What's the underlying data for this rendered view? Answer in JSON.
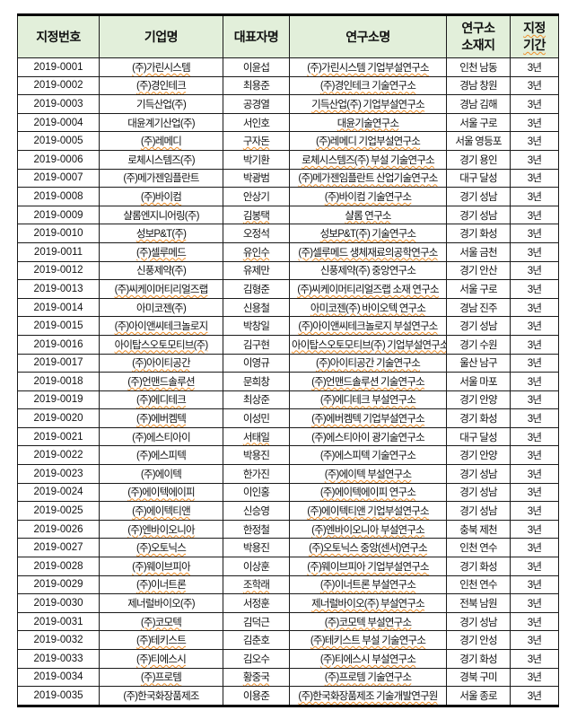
{
  "page": {
    "background": "#ffffff"
  },
  "table": {
    "header_fill": "#e2efda",
    "border_color": "#000000",
    "spellcheck_underline_color": "#ef8f2a",
    "headers": [
      {
        "key": "id",
        "label": "지정번호",
        "wavy": false
      },
      {
        "key": "company",
        "label": "기업명",
        "wavy": false
      },
      {
        "key": "ceo",
        "label": "대표자명",
        "wavy": false
      },
      {
        "key": "lab",
        "label": "연구소명",
        "wavy": false
      },
      {
        "key": "location",
        "label": "연구소\n소재지",
        "wavy": false
      },
      {
        "key": "period",
        "label": "지정\n기간",
        "wavy": true
      }
    ],
    "rows": [
      {
        "id": "2019-0001",
        "company": "(주)가린시스템",
        "ceo": "이윤섭",
        "lab": "(주)가린시스템 기업부설연구소",
        "location": "인천 남동",
        "period": "3년",
        "wavy": [
          "company",
          "lab"
        ]
      },
      {
        "id": "2019-0002",
        "company": "(주)경인테크",
        "ceo": "최용준",
        "lab": "(주)경인테크 기술연구소",
        "location": "경남 창원",
        "period": "3년",
        "wavy": [
          "company",
          "lab"
        ]
      },
      {
        "id": "2019-0003",
        "company": "기득산업(주)",
        "ceo": "공경열",
        "lab": "기득산업(주) 기업부설연구소",
        "location": "경남 김해",
        "period": "3년",
        "wavy": [
          "lab"
        ]
      },
      {
        "id": "2019-0004",
        "company": "대윤계기산업(주)",
        "ceo": "서인호",
        "lab": "대윤기술연구소",
        "location": "서울 구로",
        "period": "3년",
        "wavy": [
          "lab"
        ]
      },
      {
        "id": "2019-0005",
        "company": "(주)레메디",
        "ceo": "구자돈",
        "lab": "(주)레메디 기업부설연구소",
        "location": "서울 영등포",
        "period": "3년",
        "wavy": [
          "company",
          "ceo",
          "lab"
        ]
      },
      {
        "id": "2019-0006",
        "company": "로체시스템즈(주)",
        "ceo": "박기환",
        "lab": "로체시스템즈(주) 부설 기술연구소",
        "location": "경기 용인",
        "period": "3년",
        "wavy": [
          "lab"
        ]
      },
      {
        "id": "2019-0007",
        "company": "(주)메가젠임플란트",
        "ceo": "박광범",
        "lab": "(주)메가젠임플란트 산업기술연구소",
        "location": "대구 달성",
        "period": "3년",
        "wavy": [
          "lab"
        ]
      },
      {
        "id": "2019-0008",
        "company": "(주)바이컴",
        "ceo": "안상기",
        "lab": "(주)바이컴 기술연구소",
        "location": "경기 성남",
        "period": "3년",
        "wavy": [
          "company",
          "lab"
        ]
      },
      {
        "id": "2019-0009",
        "company": "샬롬엔지니어링(주)",
        "ceo": "김봉택",
        "lab": "샬롬 연구소",
        "location": "경기 성남",
        "period": "3년",
        "wavy": [
          "ceo",
          "lab"
        ]
      },
      {
        "id": "2019-0010",
        "company": "성보P&T(주)",
        "ceo": "오정석",
        "lab": "성보P&T(주) 기술연구소",
        "location": "경기 화성",
        "period": "3년",
        "wavy": [
          "company",
          "lab"
        ]
      },
      {
        "id": "2019-0011",
        "company": "(주)셀루메드",
        "ceo": "유인수",
        "lab": "(주)셀루메드 생체재료의공학연구소",
        "location": "서울 금천",
        "period": "3년",
        "wavy": [
          "company",
          "ceo",
          "lab"
        ]
      },
      {
        "id": "2019-0012",
        "company": "신풍제약(주)",
        "ceo": "유제만",
        "lab": "신풍제약(주) 중앙연구소",
        "location": "경기 안산",
        "period": "3년",
        "wavy": []
      },
      {
        "id": "2019-0013",
        "company": "(주)씨케이머티리얼즈랩",
        "ceo": "김형준",
        "lab": "(주)씨케이머티리얼즈랩 소재 연구소",
        "location": "서울 구로",
        "period": "3년",
        "wavy": [
          "company",
          "lab"
        ]
      },
      {
        "id": "2019-0014",
        "company": "아미코젠(주)",
        "ceo": "신용철",
        "lab": "아미코젠(주) 바이오텍 연구소",
        "location": "경남 진주",
        "period": "3년",
        "wavy": [
          "lab"
        ]
      },
      {
        "id": "2019-0015",
        "company": "(주)아이앤씨테크놀로지",
        "ceo": "박창일",
        "lab": "(주)아이앤씨테크놀로지 부설연구소",
        "location": "경기 성남",
        "period": "3년",
        "wavy": [
          "company",
          "lab"
        ]
      },
      {
        "id": "2019-0016",
        "company": "아이탑스오토모티브(주)",
        "ceo": "김구현",
        "lab": "아이탑스오토모티브(주) 기업부설연구소",
        "location": "경기 수원",
        "period": "3년",
        "wavy": [
          "company",
          "lab"
        ]
      },
      {
        "id": "2019-0017",
        "company": "(주)아이티공간",
        "ceo": "이영규",
        "lab": "(주)아이티공간 기술연구소",
        "location": "울산 남구",
        "period": "3년",
        "wavy": [
          "company",
          "lab"
        ]
      },
      {
        "id": "2019-0018",
        "company": "(주)언맨드솔루션",
        "ceo": "문희창",
        "lab": "(주)언맨드솔루션 기술연구소",
        "location": "서울 마포",
        "period": "3년",
        "wavy": [
          "company",
          "lab"
        ]
      },
      {
        "id": "2019-0019",
        "company": "(주)에디테크",
        "ceo": "최상준",
        "lab": "(주)에디테크 부설연구소",
        "location": "경기 안양",
        "period": "3년",
        "wavy": [
          "company",
          "lab"
        ]
      },
      {
        "id": "2019-0020",
        "company": "(주)에버켐텍",
        "ceo": "이성민",
        "lab": "(주)에버켐텍 기업부설연구소",
        "location": "경기 화성",
        "period": "3년",
        "wavy": [
          "company",
          "lab"
        ]
      },
      {
        "id": "2019-0021",
        "company": "(주)에스티아이",
        "ceo": "서태일",
        "lab": "(주)에스티아이 광기술연구소",
        "location": "대구 달성",
        "period": "3년",
        "wavy": [
          "ceo"
        ]
      },
      {
        "id": "2019-0022",
        "company": "(주)에스피텍",
        "ceo": "박용진",
        "lab": "(주)에스피텍 기술연구소",
        "location": "경기 안양",
        "period": "3년",
        "wavy": []
      },
      {
        "id": "2019-0023",
        "company": "(주)에이텍",
        "ceo": "한가진",
        "lab": "(주)에이텍 부설연구소",
        "location": "경기 성남",
        "period": "3년",
        "wavy": [
          "lab"
        ]
      },
      {
        "id": "2019-0024",
        "company": "(주)에이텍에이피",
        "ceo": "이인홍",
        "lab": "(주)에이텍에이피 연구소",
        "location": "경기 성남",
        "period": "3년",
        "wavy": [
          "company",
          "lab"
        ]
      },
      {
        "id": "2019-0025",
        "company": "(주)에이텍티앤",
        "ceo": "신승영",
        "lab": "(주)에이텍티앤 기업부설연구소",
        "location": "경기 성남",
        "period": "3년",
        "wavy": [
          "company",
          "lab"
        ]
      },
      {
        "id": "2019-0026",
        "company": "(주)엔바이오니아",
        "ceo": "한정철",
        "lab": "(주)엔바이오니아 부설연구소",
        "location": "충북 제천",
        "period": "3년",
        "wavy": [
          "company",
          "lab"
        ]
      },
      {
        "id": "2019-0027",
        "company": "(주)오토닉스",
        "ceo": "박용진",
        "lab": "(주)오토닉스 중앙(센서)연구소",
        "location": "인천 연수",
        "period": "3년",
        "wavy": [
          "company",
          "lab"
        ]
      },
      {
        "id": "2019-0028",
        "company": "(주)웨이브피아",
        "ceo": "이상훈",
        "lab": "(주)웨이브피아 기업부설연구소",
        "location": "경기 화성",
        "period": "3년",
        "wavy": [
          "company",
          "lab"
        ]
      },
      {
        "id": "2019-0029",
        "company": "(주)이너트론",
        "ceo": "조학래",
        "lab": "(주)이너트론 부설연구소",
        "location": "인천 연수",
        "period": "3년",
        "wavy": [
          "company",
          "ceo",
          "lab"
        ]
      },
      {
        "id": "2019-0030",
        "company": "제너럴바이오(주)",
        "ceo": "서정훈",
        "lab": "제너럴바이오(주) 부설연구소",
        "location": "전북 남원",
        "period": "3년",
        "wavy": [
          "lab"
        ]
      },
      {
        "id": "2019-0031",
        "company": "(주)코모텍",
        "ceo": "김덕근",
        "lab": "(주)코모텍 부설연구소",
        "location": "경기 성남",
        "period": "3년",
        "wavy": [
          "company",
          "lab"
        ]
      },
      {
        "id": "2019-0032",
        "company": "(주)테키스트",
        "ceo": "김춘호",
        "lab": "(주)테키스트 부설 기술연구소",
        "location": "경기 안성",
        "period": "3년",
        "wavy": [
          "company",
          "lab"
        ]
      },
      {
        "id": "2019-0033",
        "company": "(주)티에스시",
        "ceo": "김오수",
        "lab": "(주)티에스시 부설연구소",
        "location": "경기 화성",
        "period": "3년",
        "wavy": [
          "company",
          "lab"
        ]
      },
      {
        "id": "2019-0034",
        "company": "(주)프로템",
        "ceo": "황중국",
        "lab": "(주)프로템 기술연구소",
        "location": "경북 구미",
        "period": "3년",
        "wavy": [
          "company",
          "ceo",
          "lab"
        ]
      },
      {
        "id": "2019-0035",
        "company": "(주)한국화장품제조",
        "ceo": "이용준",
        "lab": "(주)한국화장품제조 기술개발연구원",
        "location": "서울 종로",
        "period": "3년",
        "wavy": [
          "lab"
        ]
      }
    ]
  }
}
